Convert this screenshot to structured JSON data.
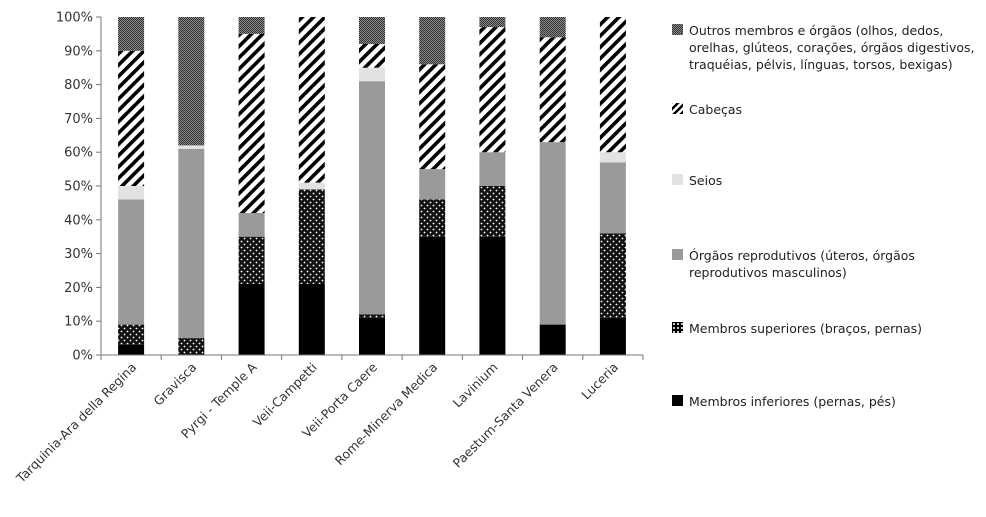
{
  "chart_data": {
    "type": "bar",
    "stacked": true,
    "orientation": "vertical",
    "title": "",
    "xlabel": "",
    "ylabel": "",
    "ylim": [
      0,
      100
    ],
    "y_ticks": [
      "0%",
      "10%",
      "20%",
      "30%",
      "40%",
      "50%",
      "60%",
      "70%",
      "80%",
      "90%",
      "100%"
    ],
    "grid": false,
    "legend_position": "right",
    "categories": [
      "Tarquinia-Ara della Regina",
      "Gravisca",
      "Pyrgi - Temple A",
      "Veii-Campetti",
      "Veii-Porta Caere",
      "Rome-Minerva Medica",
      "Lavinium",
      "Paestum-Santa Venera",
      "Luceria"
    ],
    "series": [
      {
        "name": "Membros inferiores (pernas, pés)",
        "pattern": "solid-black",
        "values": [
          3,
          0,
          21,
          21,
          11,
          35,
          35,
          9,
          11
        ]
      },
      {
        "name": "Membros superiores (braços, pernas)",
        "pattern": "black-dots",
        "values": [
          6,
          5,
          14,
          28,
          1,
          11,
          15,
          0,
          25
        ]
      },
      {
        "name": "Órgãos reprodutivos (úteros, órgãos reprodutivos masculinos)",
        "pattern": "solid-gray",
        "values": [
          37,
          56,
          7,
          0,
          69,
          9,
          10,
          54,
          21
        ]
      },
      {
        "name": "Seios",
        "pattern": "light-gray",
        "values": [
          4,
          1,
          0,
          2,
          4,
          0,
          0,
          0,
          3
        ]
      },
      {
        "name": "Cabeças",
        "pattern": "diagonal-stripes",
        "values": [
          40,
          0,
          53,
          49,
          7,
          31,
          37,
          31,
          40
        ]
      },
      {
        "name": "Outros membros e órgãos (olhos, dedos, orelhas, glúteos, corações, órgãos digestivos, traquéias, pélvis, línguas, torsos, bexigas)",
        "pattern": "checker",
        "values": [
          10,
          38,
          5,
          0,
          8,
          14,
          3,
          6,
          0
        ]
      }
    ]
  }
}
